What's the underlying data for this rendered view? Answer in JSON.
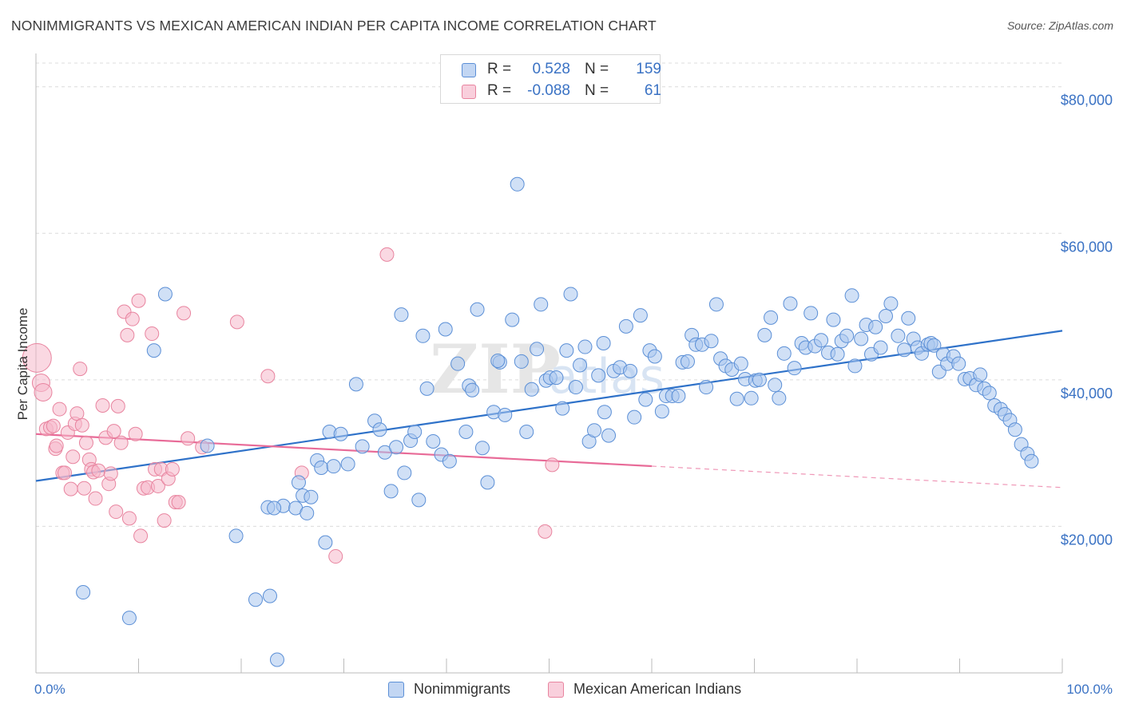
{
  "header": {
    "title": "NONIMMIGRANTS VS MEXICAN AMERICAN INDIAN PER CAPITA INCOME CORRELATION CHART",
    "source": "Source: ZipAtlas.com"
  },
  "legend_top": {
    "rows": [
      {
        "r_label": "R =",
        "r_value": "0.528",
        "n_label": "N =",
        "n_value": "159"
      },
      {
        "r_label": "R =",
        "r_value": "-0.088",
        "n_label": "N =",
        "n_value": "61"
      }
    ]
  },
  "legend_bottom": {
    "items": [
      {
        "label": "Nonimmigrants"
      },
      {
        "label": "Mexican American Indians"
      }
    ]
  },
  "watermark": {
    "zip": "ZIP",
    "atlas": "atlas"
  },
  "colors": {
    "blue_fill": "#a9c6ef",
    "blue_stroke": "#5b8fd6",
    "blue_line": "#2f72c9",
    "pink_fill": "#f6b8cb",
    "pink_stroke": "#e8849f",
    "pink_line": "#e86b98",
    "tick_text": "#3a72c4",
    "grid": "#dcdcdc"
  },
  "chart_data": {
    "type": "scatter",
    "title": "NONIMMIGRANTS VS MEXICAN AMERICAN INDIAN PER CAPITA INCOME CORRELATION CHART",
    "xlabel": "",
    "ylabel": "Per Capita Income",
    "xlim": [
      0,
      100
    ],
    "ylim": [
      0,
      84000
    ],
    "x_tick_labels": [
      "0.0%",
      "100.0%"
    ],
    "y_ticks": [
      20000,
      40000,
      60000,
      80000
    ],
    "y_tick_labels": [
      "$20,000",
      "$40,000",
      "$60,000",
      "$80,000"
    ],
    "grid": true,
    "legend_position": "bottom",
    "series": [
      {
        "name": "Nonimmigrants",
        "r": 0.528,
        "n": 159,
        "trend": {
          "x": [
            0,
            100
          ],
          "y": [
            26200,
            46700
          ],
          "dashed_from": null
        },
        "points": [
          [
            4.6,
            11000
          ],
          [
            9.1,
            7500
          ],
          [
            11.5,
            44000
          ],
          [
            12.6,
            51700
          ],
          [
            16.7,
            31000
          ],
          [
            19.5,
            18700
          ],
          [
            21.4,
            10000
          ],
          [
            22.6,
            22600
          ],
          [
            22.8,
            10500
          ],
          [
            23.5,
            1800
          ],
          [
            24.1,
            22800
          ],
          [
            25.3,
            22500
          ],
          [
            25.6,
            26000
          ],
          [
            26.0,
            24200
          ],
          [
            26.4,
            21800
          ],
          [
            26.8,
            24000
          ],
          [
            27.4,
            29000
          ],
          [
            27.8,
            28000
          ],
          [
            28.2,
            17800
          ],
          [
            28.6,
            32900
          ],
          [
            29.0,
            28200
          ],
          [
            29.7,
            32600
          ],
          [
            30.4,
            28500
          ],
          [
            31.2,
            39400
          ],
          [
            31.8,
            30900
          ],
          [
            33.0,
            34400
          ],
          [
            33.5,
            33200
          ],
          [
            34.0,
            30100
          ],
          [
            34.6,
            24800
          ],
          [
            35.1,
            30800
          ],
          [
            35.6,
            48900
          ],
          [
            35.9,
            27300
          ],
          [
            36.5,
            31700
          ],
          [
            36.9,
            32900
          ],
          [
            37.7,
            46000
          ],
          [
            38.1,
            38800
          ],
          [
            38.7,
            31600
          ],
          [
            39.5,
            29800
          ],
          [
            39.9,
            46900
          ],
          [
            40.3,
            28900
          ],
          [
            41.1,
            42200
          ],
          [
            41.9,
            32900
          ],
          [
            42.2,
            39200
          ],
          [
            42.5,
            38600
          ],
          [
            43.0,
            49600
          ],
          [
            43.5,
            30700
          ],
          [
            44.0,
            26000
          ],
          [
            44.6,
            35600
          ],
          [
            45.2,
            42400
          ],
          [
            45.7,
            35200
          ],
          [
            46.4,
            48200
          ],
          [
            46.9,
            66700
          ],
          [
            47.3,
            42500
          ],
          [
            47.8,
            32900
          ],
          [
            48.3,
            38700
          ],
          [
            48.8,
            44200
          ],
          [
            49.2,
            50300
          ],
          [
            49.7,
            39900
          ],
          [
            50.1,
            40300
          ],
          [
            50.7,
            40300
          ],
          [
            51.3,
            36100
          ],
          [
            51.7,
            44000
          ],
          [
            52.1,
            51700
          ],
          [
            52.6,
            39000
          ],
          [
            53.0,
            42000
          ],
          [
            53.5,
            44500
          ],
          [
            53.9,
            31600
          ],
          [
            54.4,
            33100
          ],
          [
            54.8,
            40600
          ],
          [
            55.4,
            35600
          ],
          [
            55.8,
            32400
          ],
          [
            56.3,
            41200
          ],
          [
            56.9,
            41700
          ],
          [
            57.5,
            47300
          ],
          [
            57.9,
            41200
          ],
          [
            58.3,
            34900
          ],
          [
            58.9,
            48800
          ],
          [
            59.4,
            37300
          ],
          [
            59.8,
            44000
          ],
          [
            60.3,
            43200
          ],
          [
            61.0,
            35700
          ],
          [
            61.4,
            37800
          ],
          [
            62.0,
            37800
          ],
          [
            62.6,
            37800
          ],
          [
            63.0,
            42400
          ],
          [
            63.5,
            42500
          ],
          [
            63.9,
            46100
          ],
          [
            64.3,
            44800
          ],
          [
            64.9,
            44800
          ],
          [
            65.3,
            39000
          ],
          [
            65.8,
            45300
          ],
          [
            66.3,
            50300
          ],
          [
            66.7,
            42900
          ],
          [
            67.2,
            41900
          ],
          [
            67.8,
            41400
          ],
          [
            68.3,
            37400
          ],
          [
            68.7,
            42200
          ],
          [
            69.1,
            40100
          ],
          [
            69.7,
            37500
          ],
          [
            70.1,
            39900
          ],
          [
            70.5,
            40000
          ],
          [
            71.0,
            46100
          ],
          [
            71.6,
            48500
          ],
          [
            72.0,
            39300
          ],
          [
            72.4,
            37500
          ],
          [
            72.9,
            43600
          ],
          [
            73.5,
            50400
          ],
          [
            73.9,
            41600
          ],
          [
            74.6,
            45000
          ],
          [
            75.0,
            44400
          ],
          [
            75.5,
            49100
          ],
          [
            75.9,
            44600
          ],
          [
            76.5,
            45400
          ],
          [
            77.2,
            43700
          ],
          [
            77.7,
            48200
          ],
          [
            78.1,
            43500
          ],
          [
            78.5,
            45300
          ],
          [
            79.0,
            46000
          ],
          [
            79.5,
            51500
          ],
          [
            79.8,
            41900
          ],
          [
            80.4,
            45600
          ],
          [
            80.9,
            47500
          ],
          [
            81.4,
            43500
          ],
          [
            81.8,
            47200
          ],
          [
            82.3,
            44400
          ],
          [
            82.8,
            48700
          ],
          [
            83.3,
            50400
          ],
          [
            84.0,
            46000
          ],
          [
            84.6,
            44100
          ],
          [
            85.0,
            48400
          ],
          [
            85.5,
            45600
          ],
          [
            85.9,
            44400
          ],
          [
            86.3,
            43600
          ],
          [
            86.9,
            44800
          ],
          [
            87.2,
            45000
          ],
          [
            87.5,
            44700
          ],
          [
            88.0,
            41100
          ],
          [
            88.4,
            43500
          ],
          [
            88.8,
            42200
          ],
          [
            89.4,
            43200
          ],
          [
            89.9,
            42200
          ],
          [
            90.5,
            40100
          ],
          [
            91.0,
            40200
          ],
          [
            91.6,
            39300
          ],
          [
            92.0,
            40700
          ],
          [
            92.4,
            38800
          ],
          [
            92.9,
            38200
          ],
          [
            93.4,
            36500
          ],
          [
            94.0,
            36000
          ],
          [
            94.4,
            35300
          ],
          [
            94.9,
            34500
          ],
          [
            95.4,
            33200
          ],
          [
            96.0,
            31200
          ],
          [
            96.6,
            29900
          ],
          [
            97.0,
            28900
          ],
          [
            45.0,
            42600
          ],
          [
            23.2,
            22500
          ],
          [
            37.3,
            23600
          ],
          [
            55.3,
            45000
          ]
        ]
      },
      {
        "name": "Mexican American Indians",
        "r": -0.088,
        "n": 61,
        "trend": {
          "x": [
            0,
            100
          ],
          "y": [
            32600,
            25300
          ],
          "dashed_from": 60
        },
        "points": [
          [
            0.1,
            43000
          ],
          [
            0.5,
            39600
          ],
          [
            0.7,
            38300
          ],
          [
            1.0,
            33300
          ],
          [
            1.4,
            33500
          ],
          [
            1.7,
            33700
          ],
          [
            1.9,
            30600
          ],
          [
            2.0,
            31000
          ],
          [
            2.3,
            36000
          ],
          [
            2.6,
            27300
          ],
          [
            2.8,
            27300
          ],
          [
            3.1,
            32800
          ],
          [
            3.4,
            25100
          ],
          [
            3.6,
            29500
          ],
          [
            3.8,
            34000
          ],
          [
            4.0,
            35400
          ],
          [
            4.3,
            41500
          ],
          [
            4.5,
            33800
          ],
          [
            4.7,
            25200
          ],
          [
            4.9,
            31400
          ],
          [
            5.2,
            29100
          ],
          [
            5.4,
            27800
          ],
          [
            5.6,
            27400
          ],
          [
            5.8,
            23800
          ],
          [
            6.1,
            27600
          ],
          [
            6.5,
            36500
          ],
          [
            6.8,
            32100
          ],
          [
            7.1,
            25800
          ],
          [
            7.3,
            27200
          ],
          [
            7.6,
            33000
          ],
          [
            7.8,
            22000
          ],
          [
            8.0,
            36400
          ],
          [
            8.3,
            31400
          ],
          [
            8.6,
            49300
          ],
          [
            8.9,
            46100
          ],
          [
            9.1,
            21100
          ],
          [
            9.4,
            48300
          ],
          [
            9.7,
            32600
          ],
          [
            10.0,
            50800
          ],
          [
            10.2,
            18700
          ],
          [
            10.5,
            25200
          ],
          [
            10.9,
            25300
          ],
          [
            11.3,
            46300
          ],
          [
            11.6,
            27800
          ],
          [
            11.9,
            25500
          ],
          [
            12.2,
            27800
          ],
          [
            12.5,
            20800
          ],
          [
            12.9,
            26500
          ],
          [
            13.3,
            27800
          ],
          [
            13.6,
            23300
          ],
          [
            13.9,
            23300
          ],
          [
            14.4,
            49100
          ],
          [
            14.8,
            32000
          ],
          [
            16.2,
            30800
          ],
          [
            19.6,
            47900
          ],
          [
            22.6,
            40500
          ],
          [
            25.9,
            27300
          ],
          [
            29.2,
            15900
          ],
          [
            34.2,
            57100
          ],
          [
            49.6,
            19300
          ],
          [
            50.3,
            28400
          ]
        ]
      }
    ]
  }
}
